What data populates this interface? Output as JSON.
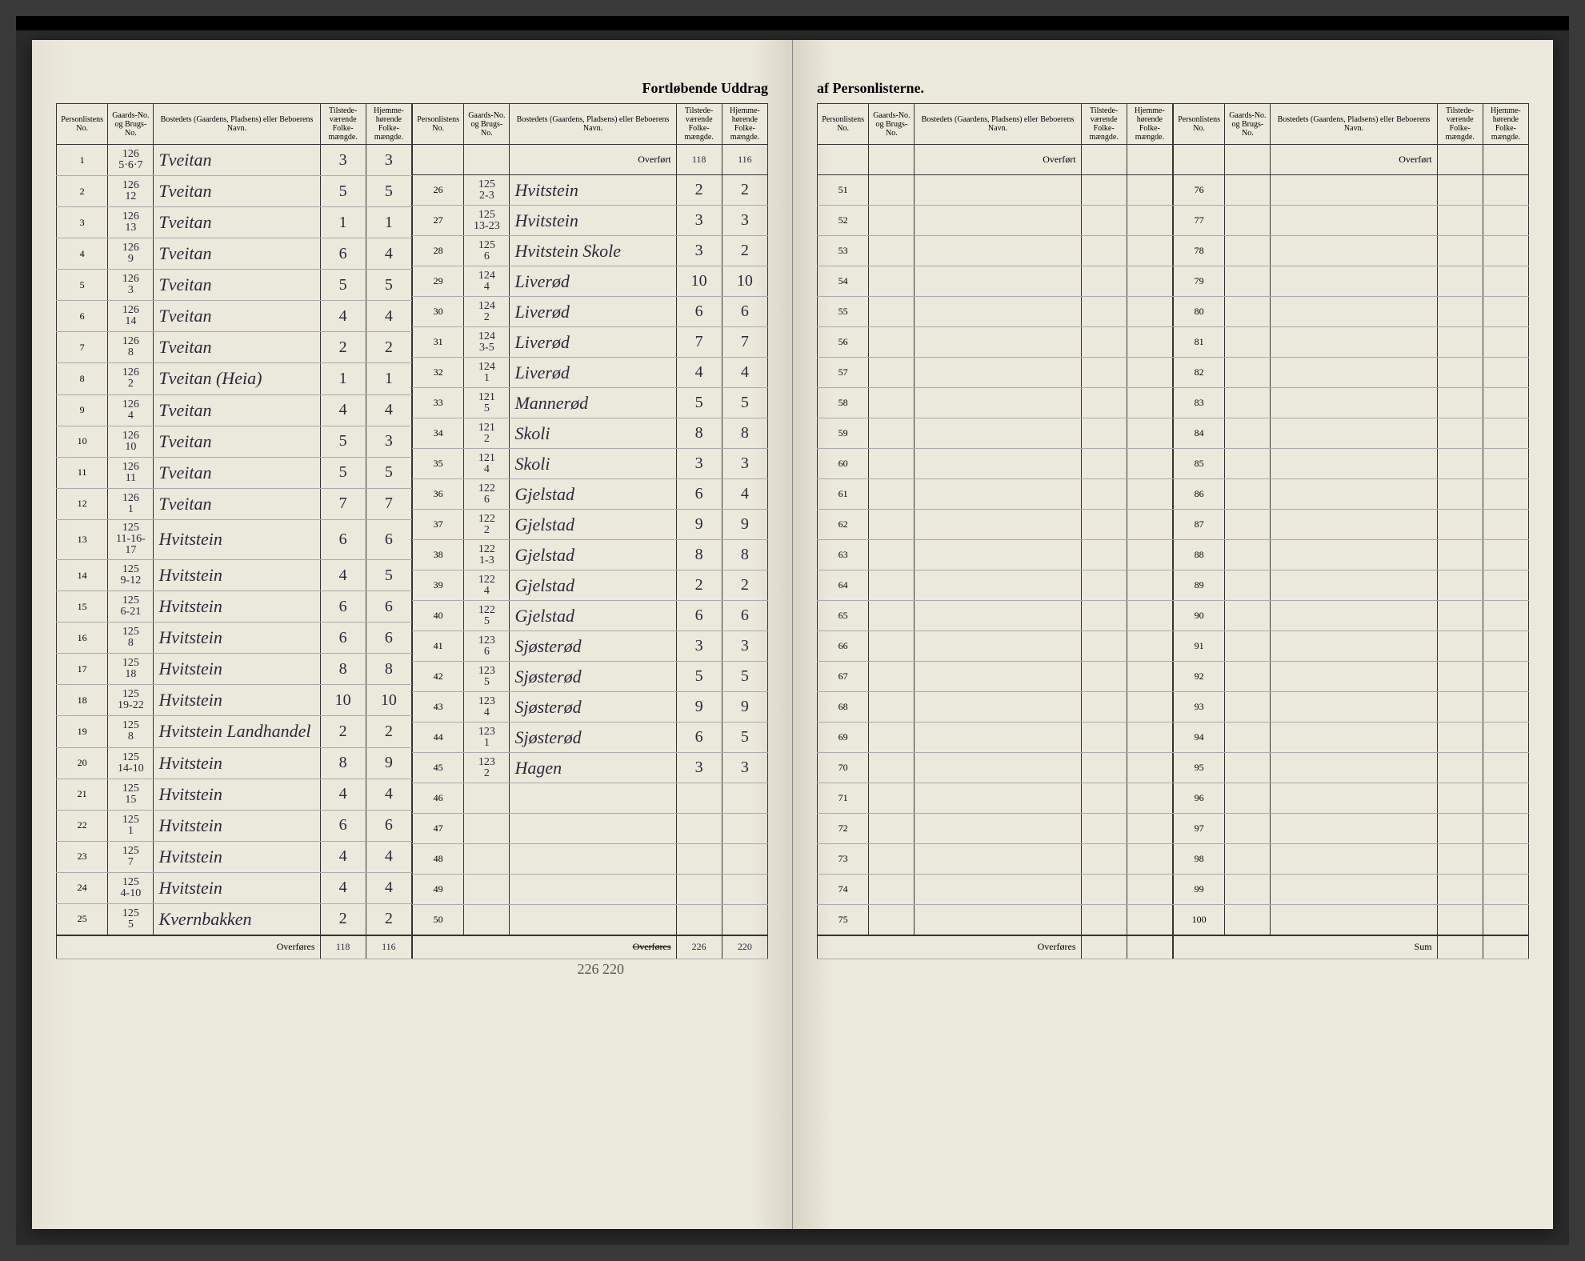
{
  "title_left": "Fortløbende Uddrag",
  "title_right": "af Personlisterne.",
  "headers": {
    "personliste": "Personlistens No.",
    "gaards": "Gaards-No. og Brugs-No.",
    "bosted": "Bostedets (Gaardens, Pladsens) eller Beboerens Navn.",
    "tilstede": "Tilstede-værende Folke-mængde.",
    "hjemme": "Hjemme-hørende Folke-mængde."
  },
  "overfort_label": "Overført",
  "overfores_label": "Overføres",
  "sum_label": "Sum",
  "carry_in": {
    "tilstede": "118",
    "hjemme": "116"
  },
  "carry_out_left": {
    "tilstede": "118",
    "hjemme": "116"
  },
  "carry_out_right": {
    "tilstede": "226",
    "hjemme": "220"
  },
  "below_right": "226  220",
  "left_rows": [
    {
      "n": "1",
      "g1": "126",
      "g2": "5·6·7",
      "name": "Tveitan",
      "t": "3",
      "h": "3"
    },
    {
      "n": "2",
      "g1": "126",
      "g2": "12",
      "name": "Tveitan",
      "t": "5",
      "h": "5"
    },
    {
      "n": "3",
      "g1": "126",
      "g2": "13",
      "name": "Tveitan",
      "t": "1",
      "h": "1"
    },
    {
      "n": "4",
      "g1": "126",
      "g2": "9",
      "name": "Tveitan",
      "t": "6",
      "h": "4"
    },
    {
      "n": "5",
      "g1": "126",
      "g2": "3",
      "name": "Tveitan",
      "t": "5",
      "h": "5"
    },
    {
      "n": "6",
      "g1": "126",
      "g2": "14",
      "name": "Tveitan",
      "t": "4",
      "h": "4"
    },
    {
      "n": "7",
      "g1": "126",
      "g2": "8",
      "name": "Tveitan",
      "t": "2",
      "h": "2"
    },
    {
      "n": "8",
      "g1": "126",
      "g2": "2",
      "name": "Tveitan (Heia)",
      "t": "1",
      "h": "1"
    },
    {
      "n": "9",
      "g1": "126",
      "g2": "4",
      "name": "Tveitan",
      "t": "4",
      "h": "4"
    },
    {
      "n": "10",
      "g1": "126",
      "g2": "10",
      "name": "Tveitan",
      "t": "5",
      "h": "3"
    },
    {
      "n": "11",
      "g1": "126",
      "g2": "11",
      "name": "Tveitan",
      "t": "5",
      "h": "5"
    },
    {
      "n": "12",
      "g1": "126",
      "g2": "1",
      "name": "Tveitan",
      "t": "7",
      "h": "7"
    },
    {
      "n": "13",
      "g1": "125",
      "g2": "11-16-17",
      "name": "Hvitstein",
      "t": "6",
      "h": "6"
    },
    {
      "n": "14",
      "g1": "125",
      "g2": "9-12",
      "name": "Hvitstein",
      "t": "4",
      "h": "5"
    },
    {
      "n": "15",
      "g1": "125",
      "g2": "6-21",
      "name": "Hvitstein",
      "t": "6",
      "h": "6"
    },
    {
      "n": "16",
      "g1": "125",
      "g2": "8",
      "name": "Hvitstein",
      "t": "6",
      "h": "6"
    },
    {
      "n": "17",
      "g1": "125",
      "g2": "18",
      "name": "Hvitstein",
      "t": "8",
      "h": "8"
    },
    {
      "n": "18",
      "g1": "125",
      "g2": "19-22",
      "name": "Hvitstein",
      "t": "10",
      "h": "10"
    },
    {
      "n": "19",
      "g1": "125",
      "g2": "8",
      "name": "Hvitstein Landhandel",
      "t": "2",
      "h": "2"
    },
    {
      "n": "20",
      "g1": "125",
      "g2": "14-10",
      "name": "Hvitstein",
      "t": "8",
      "h": "9"
    },
    {
      "n": "21",
      "g1": "125",
      "g2": "15",
      "name": "Hvitstein",
      "t": "4",
      "h": "4"
    },
    {
      "n": "22",
      "g1": "125",
      "g2": "1",
      "name": "Hvitstein",
      "t": "6",
      "h": "6"
    },
    {
      "n": "23",
      "g1": "125",
      "g2": "7",
      "name": "Hvitstein",
      "t": "4",
      "h": "4"
    },
    {
      "n": "24",
      "g1": "125",
      "g2": "4-10",
      "name": "Hvitstein",
      "t": "4",
      "h": "4"
    },
    {
      "n": "25",
      "g1": "125",
      "g2": "5",
      "name": "Kvernbakken",
      "t": "2",
      "h": "2"
    }
  ],
  "right_rows": [
    {
      "n": "26",
      "g1": "125",
      "g2": "2-3",
      "name": "Hvitstein",
      "t": "2",
      "h": "2"
    },
    {
      "n": "27",
      "g1": "125",
      "g2": "13-23",
      "name": "Hvitstein",
      "t": "3",
      "h": "3"
    },
    {
      "n": "28",
      "g1": "125",
      "g2": "6",
      "name": "Hvitstein Skole",
      "t": "3",
      "h": "2"
    },
    {
      "n": "29",
      "g1": "124",
      "g2": "4",
      "name": "Liverød",
      "t": "10",
      "h": "10"
    },
    {
      "n": "30",
      "g1": "124",
      "g2": "2",
      "name": "Liverød",
      "t": "6",
      "h": "6"
    },
    {
      "n": "31",
      "g1": "124",
      "g2": "3-5",
      "name": "Liverød",
      "t": "7",
      "h": "7"
    },
    {
      "n": "32",
      "g1": "124",
      "g2": "1",
      "name": "Liverød",
      "t": "4",
      "h": "4"
    },
    {
      "n": "33",
      "g1": "121",
      "g2": "5",
      "name": "Mannerød",
      "t": "5",
      "h": "5"
    },
    {
      "n": "34",
      "g1": "121",
      "g2": "2",
      "name": "Skoli",
      "t": "8",
      "h": "8"
    },
    {
      "n": "35",
      "g1": "121",
      "g2": "4",
      "name": "Skoli",
      "t": "3",
      "h": "3"
    },
    {
      "n": "36",
      "g1": "122",
      "g2": "6",
      "name": "Gjelstad",
      "t": "6",
      "h": "4"
    },
    {
      "n": "37",
      "g1": "122",
      "g2": "2",
      "name": "Gjelstad",
      "t": "9",
      "h": "9"
    },
    {
      "n": "38",
      "g1": "122",
      "g2": "1-3",
      "name": "Gjelstad",
      "t": "8",
      "h": "8"
    },
    {
      "n": "39",
      "g1": "122",
      "g2": "4",
      "name": "Gjelstad",
      "t": "2",
      "h": "2"
    },
    {
      "n": "40",
      "g1": "122",
      "g2": "5",
      "name": "Gjelstad",
      "t": "6",
      "h": "6"
    },
    {
      "n": "41",
      "g1": "123",
      "g2": "6",
      "name": "Sjøsterød",
      "t": "3",
      "h": "3"
    },
    {
      "n": "42",
      "g1": "123",
      "g2": "5",
      "name": "Sjøsterød",
      "t": "5",
      "h": "5"
    },
    {
      "n": "43",
      "g1": "123",
      "g2": "4",
      "name": "Sjøsterød",
      "t": "9",
      "h": "9"
    },
    {
      "n": "44",
      "g1": "123",
      "g2": "1",
      "name": "Sjøsterød",
      "t": "6",
      "h": "5"
    },
    {
      "n": "45",
      "g1": "123",
      "g2": "2",
      "name": "Hagen",
      "t": "3",
      "h": "3"
    },
    {
      "n": "46",
      "g1": "",
      "g2": "",
      "name": "",
      "t": "",
      "h": ""
    },
    {
      "n": "47",
      "g1": "",
      "g2": "",
      "name": "",
      "t": "",
      "h": ""
    },
    {
      "n": "48",
      "g1": "",
      "g2": "",
      "name": "",
      "t": "",
      "h": ""
    },
    {
      "n": "49",
      "g1": "",
      "g2": "",
      "name": "",
      "t": "",
      "h": ""
    },
    {
      "n": "50",
      "g1": "",
      "g2": "",
      "name": "",
      "t": "",
      "h": ""
    }
  ],
  "right_page_cols": [
    {
      "start": 51,
      "end": 75
    },
    {
      "start": 76,
      "end": 100
    }
  ]
}
